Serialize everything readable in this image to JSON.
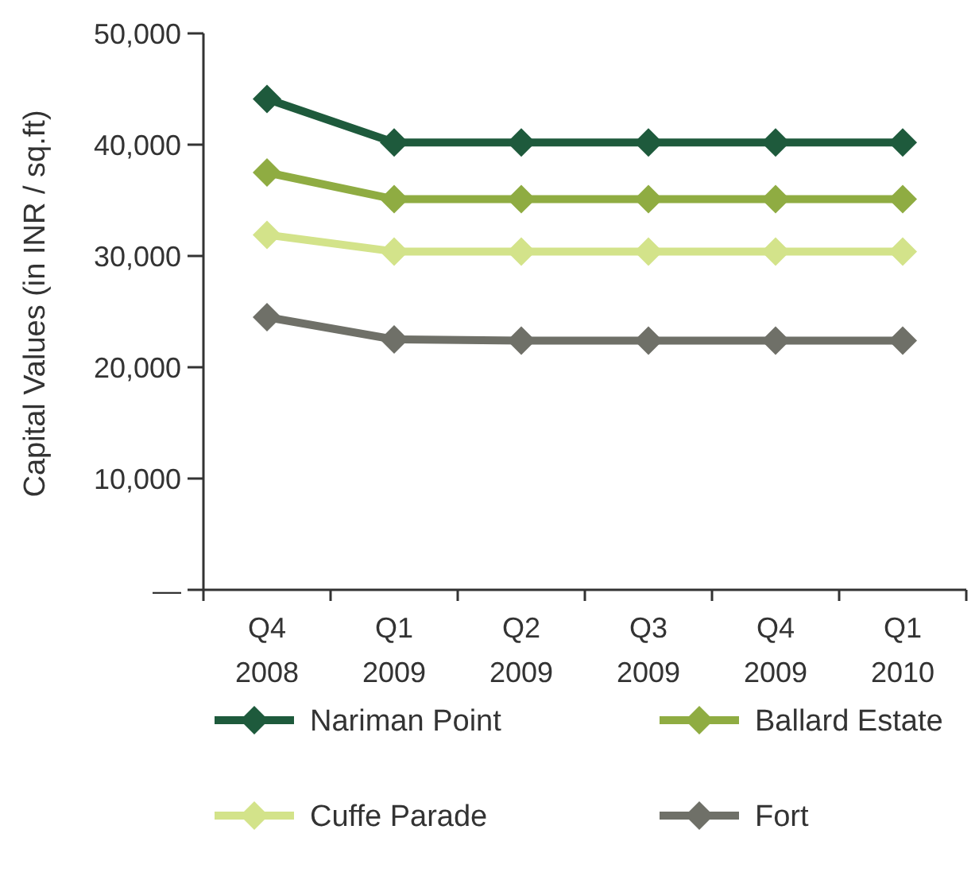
{
  "chart_data": {
    "type": "line",
    "ylabel": "Capital Values (in INR / sq.ft)",
    "categories": [
      "Q4\n2008",
      "Q1\n2009",
      "Q2\n2009",
      "Q3\n2009",
      "Q4\n2009",
      "Q1\n2010"
    ],
    "ylim": [
      0,
      50000
    ],
    "yticks": [
      {
        "value": 0,
        "label": "—"
      },
      {
        "value": 10000,
        "label": "10,000"
      },
      {
        "value": 20000,
        "label": "20,000"
      },
      {
        "value": 30000,
        "label": "30,000"
      },
      {
        "value": 40000,
        "label": "40,000"
      },
      {
        "value": 50000,
        "label": "50,000"
      }
    ],
    "series": [
      {
        "name": "Nariman Point",
        "color": "#1e5a3c",
        "values": [
          44100,
          40200,
          40200,
          40200,
          40200,
          40200
        ]
      },
      {
        "name": "Ballard Estate",
        "color": "#8fac42",
        "values": [
          37500,
          35100,
          35100,
          35100,
          35100,
          35100
        ]
      },
      {
        "name": "Cuffe Parade",
        "color": "#d3e38a",
        "values": [
          31900,
          30400,
          30400,
          30400,
          30400,
          30400
        ]
      },
      {
        "name": "Fort",
        "color": "#6f7068",
        "values": [
          24500,
          22500,
          22400,
          22400,
          22400,
          22400
        ]
      }
    ],
    "marker": "diamond",
    "line_style": "solid",
    "grid": false,
    "legend": "bottom"
  }
}
